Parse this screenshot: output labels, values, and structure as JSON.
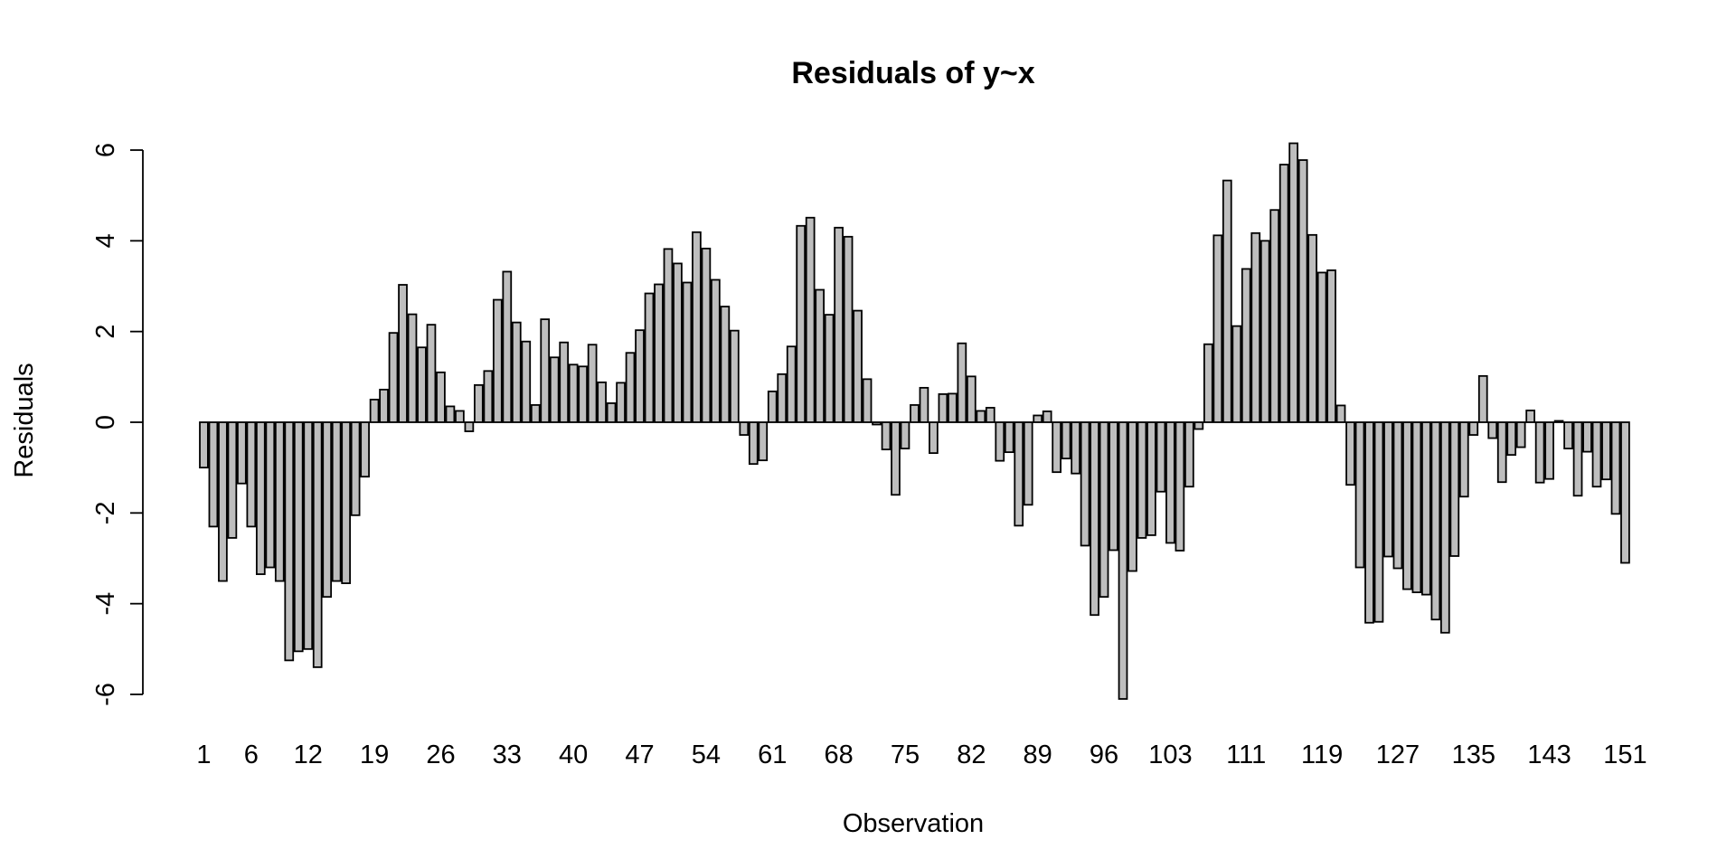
{
  "chart_data": {
    "type": "bar",
    "title": "Residuals of y~x",
    "xlabel": "Observation",
    "ylabel": "Residuals",
    "ylim": [
      -6,
      6
    ],
    "yticks": [
      -6,
      -4,
      -2,
      0,
      2,
      4,
      6
    ],
    "xtick_labels": [
      {
        "index": 1,
        "label": "1"
      },
      {
        "index": 6,
        "label": "6"
      },
      {
        "index": 12,
        "label": "12"
      },
      {
        "index": 19,
        "label": "19"
      },
      {
        "index": 26,
        "label": "26"
      },
      {
        "index": 33,
        "label": "33"
      },
      {
        "index": 40,
        "label": "40"
      },
      {
        "index": 47,
        "label": "47"
      },
      {
        "index": 54,
        "label": "54"
      },
      {
        "index": 61,
        "label": "61"
      },
      {
        "index": 68,
        "label": "68"
      },
      {
        "index": 75,
        "label": "75"
      },
      {
        "index": 82,
        "label": "82"
      },
      {
        "index": 89,
        "label": "89"
      },
      {
        "index": 96,
        "label": "96"
      },
      {
        "index": 103,
        "label": "103"
      },
      {
        "index": 111,
        "label": "111"
      },
      {
        "index": 119,
        "label": "119"
      },
      {
        "index": 127,
        "label": "127"
      },
      {
        "index": 135,
        "label": "135"
      },
      {
        "index": 143,
        "label": "143"
      },
      {
        "index": 151,
        "label": "151"
      }
    ],
    "values": [
      -1.0,
      -2.3,
      -3.5,
      -2.55,
      -1.35,
      -2.3,
      -3.35,
      -3.2,
      -3.5,
      -5.25,
      -5.05,
      -5.0,
      -5.4,
      -3.85,
      -3.5,
      -3.55,
      -2.05,
      -1.2,
      0.5,
      0.72,
      1.97,
      3.03,
      2.38,
      1.65,
      2.15,
      1.1,
      0.35,
      0.25,
      -0.2,
      0.82,
      1.13,
      2.7,
      3.32,
      2.2,
      1.78,
      0.38,
      2.27,
      1.43,
      1.76,
      1.27,
      1.23,
      1.71,
      0.88,
      0.42,
      0.87,
      1.53,
      2.03,
      2.84,
      3.04,
      3.82,
      3.5,
      3.08,
      4.19,
      3.83,
      3.14,
      2.55,
      2.02,
      -0.28,
      -0.92,
      -0.84,
      0.68,
      1.06,
      1.67,
      4.33,
      4.51,
      2.92,
      2.37,
      4.29,
      4.09,
      2.46,
      0.95,
      -0.05,
      -0.6,
      -1.6,
      -0.58,
      0.38,
      0.76,
      -0.68,
      0.62,
      0.63,
      1.74,
      1.01,
      0.25,
      0.32,
      -0.85,
      -0.66,
      -2.28,
      -1.82,
      0.15,
      0.24,
      -1.1,
      -0.8,
      -1.13,
      -2.72,
      -4.25,
      -3.85,
      -2.82,
      -6.1,
      -3.28,
      -2.55,
      -2.49,
      -1.53,
      -2.66,
      -2.83,
      -1.42,
      -0.15,
      1.72,
      4.12,
      5.33,
      2.12,
      3.38,
      4.17,
      4.0,
      4.68,
      5.68,
      6.15,
      5.78,
      4.13,
      3.3,
      3.35,
      0.37,
      -1.38,
      -3.2,
      -4.42,
      -4.4,
      -2.96,
      -3.22,
      -3.68,
      -3.75,
      -3.8,
      -4.35,
      -4.64,
      -2.95,
      -1.64,
      -0.28,
      1.02,
      -0.35,
      -1.32,
      -0.72,
      -0.55,
      0.26,
      -1.33,
      -1.25,
      0.03,
      -0.58,
      -1.62,
      -0.65,
      -1.42,
      -1.26,
      -2.02,
      -3.1
    ]
  }
}
